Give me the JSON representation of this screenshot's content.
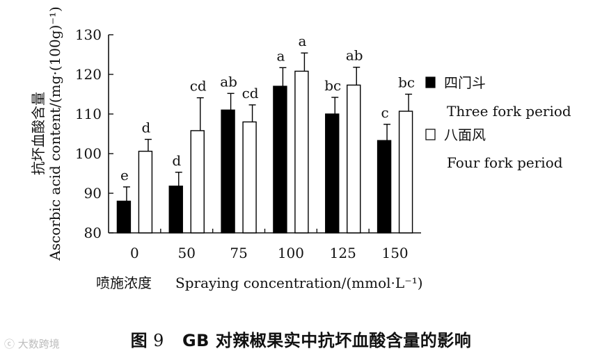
{
  "chart_data": {
    "type": "bar",
    "categories": [
      "0",
      "50",
      "75",
      "100",
      "125",
      "150"
    ],
    "series": [
      {
        "name": "四门斗",
        "name_en": "Three fork period",
        "color": "#000000",
        "values": [
          88.0,
          91.8,
          111.0,
          117.0,
          110.0,
          103.3
        ],
        "errors": [
          3.6,
          3.5,
          4.2,
          4.7,
          4.2,
          4.1
        ],
        "labels": [
          "e",
          "d",
          "ab",
          "a",
          "bc",
          "c"
        ]
      },
      {
        "name": "八面风",
        "name_en": "Four fork period",
        "color": "#ffffff",
        "values": [
          100.6,
          105.8,
          108.0,
          120.8,
          117.3,
          110.7
        ],
        "errors": [
          3.0,
          8.3,
          4.3,
          4.6,
          4.5,
          4.3
        ],
        "labels": [
          "d",
          "cd",
          "cd",
          "a",
          "ab",
          "bc"
        ]
      }
    ],
    "ylim": [
      80,
      130
    ],
    "yticks": [
      "80",
      "90",
      "100",
      "110",
      "120",
      "130"
    ],
    "ylabel_cn": "抗坏血酸含量",
    "ylabel_en": "Ascorbic acid content/(mg·(100g)⁻¹)",
    "xlabel_cn": "喷施浓度",
    "xlabel_en": "Spraying concentration/(mmol·L⁻¹)",
    "legend_position": "right",
    "grid": false
  },
  "caption": {
    "prefix": "图",
    "number": "9",
    "text": "GB 对辣椒果实中抗坏血酸含量的影响"
  },
  "watermark": "大数跨境"
}
